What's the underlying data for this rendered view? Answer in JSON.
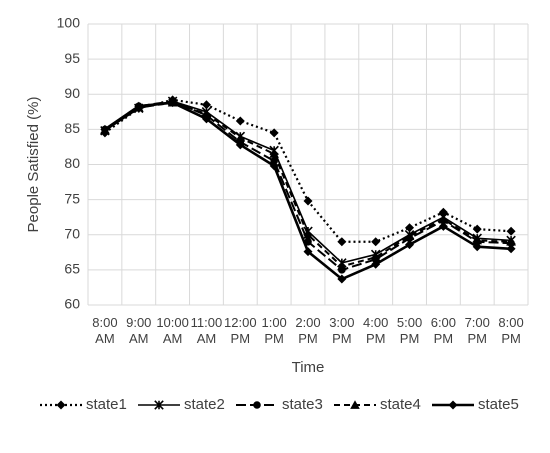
{
  "chart_data": {
    "type": "line",
    "title": "",
    "xlabel": "Time",
    "ylabel": "People Satisfied (%)",
    "ylim": [
      60,
      100
    ],
    "yticks": [
      60,
      65,
      70,
      75,
      80,
      85,
      90,
      95,
      100
    ],
    "grid": true,
    "legend_position": "bottom",
    "categories": [
      [
        "8:00",
        "AM"
      ],
      [
        "9:00",
        "AM"
      ],
      [
        "10:00",
        "AM"
      ],
      [
        "11:00",
        "AM"
      ],
      [
        "12:00",
        "PM"
      ],
      [
        "1:00",
        "PM"
      ],
      [
        "2:00",
        "PM"
      ],
      [
        "3:00",
        "PM"
      ],
      [
        "4:00",
        "PM"
      ],
      [
        "5:00",
        "PM"
      ],
      [
        "6:00",
        "PM"
      ],
      [
        "7:00",
        "PM"
      ],
      [
        "8:00",
        "PM"
      ]
    ],
    "series": [
      {
        "name": "state1",
        "marker": "diamond",
        "dash": "dotted",
        "color": "#000000",
        "values": [
          84.5,
          88.0,
          89.2,
          88.5,
          86.2,
          84.5,
          74.8,
          69.0,
          69.0,
          71.0,
          73.2,
          70.8,
          70.5
        ]
      },
      {
        "name": "state2",
        "marker": "x-star",
        "dash": "solid-thin",
        "color": "#000000",
        "values": [
          84.8,
          88.0,
          89.0,
          87.5,
          84.0,
          82.0,
          70.5,
          66.0,
          67.2,
          70.0,
          72.5,
          69.5,
          69.2
        ]
      },
      {
        "name": "state3",
        "marker": "circle",
        "dash": "long-dash",
        "color": "#000000",
        "values": [
          85.0,
          88.3,
          89.0,
          87.0,
          83.2,
          80.5,
          69.0,
          65.0,
          66.5,
          69.5,
          72.0,
          69.0,
          68.8
        ]
      },
      {
        "name": "state4",
        "marker": "triangle",
        "dash": "dashed",
        "color": "#000000",
        "values": [
          84.9,
          88.1,
          88.8,
          87.2,
          83.8,
          81.5,
          70.0,
          65.5,
          66.8,
          69.8,
          72.2,
          69.2,
          69.0
        ]
      },
      {
        "name": "state5",
        "marker": "diamond",
        "dash": "solid",
        "color": "#000000",
        "values": [
          85.0,
          88.3,
          88.8,
          86.5,
          82.8,
          79.8,
          67.6,
          63.7,
          65.8,
          68.6,
          71.2,
          68.3,
          68.0
        ]
      }
    ]
  }
}
